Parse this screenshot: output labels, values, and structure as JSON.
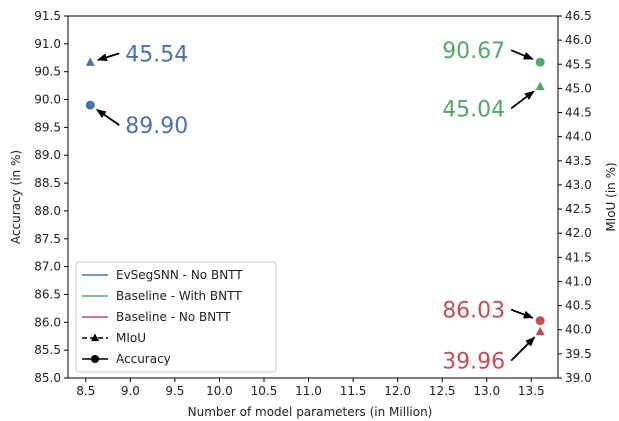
{
  "chart_data": {
    "type": "scatter",
    "title": "",
    "xlabel": "Number of model parameters (in Million)",
    "ylabel": "Accuracy (in %)",
    "y2label": "MIoU (in %)",
    "xlim": [
      8.3,
      13.8
    ],
    "ylim": [
      85.0,
      91.5
    ],
    "y2lim": [
      39.0,
      46.5
    ],
    "grid": false,
    "legend_placement": "bottom-left",
    "xticks": [
      "8.5",
      "9.0",
      "9.5",
      "10.0",
      "10.5",
      "11.0",
      "11.5",
      "12.0",
      "12.5",
      "13.0",
      "13.5"
    ],
    "yticks": [
      "85.0",
      "85.5",
      "86.0",
      "86.5",
      "87.0",
      "87.5",
      "88.0",
      "88.5",
      "89.0",
      "89.5",
      "90.0",
      "90.5",
      "91.0",
      "91.5"
    ],
    "y2ticks": [
      "39.0",
      "39.5",
      "40.0",
      "40.5",
      "41.0",
      "41.5",
      "42.0",
      "42.5",
      "43.0",
      "43.5",
      "44.0",
      "44.5",
      "45.0",
      "45.5",
      "46.0",
      "46.5"
    ],
    "series": [
      {
        "name": "EvSegSNN - No BNTT",
        "color": "#4c72b0",
        "points": [
          {
            "metric": "MIoU",
            "axis": "right",
            "marker": "triangle",
            "x": 8.55,
            "y": 45.54
          },
          {
            "metric": "Accuracy",
            "axis": "left",
            "marker": "circle",
            "x": 8.55,
            "y": 89.9
          }
        ]
      },
      {
        "name": "Baseline - With BNTT",
        "color": "#55a868",
        "points": [
          {
            "metric": "MIoU",
            "axis": "right",
            "marker": "triangle",
            "x": 13.6,
            "y": 45.04
          },
          {
            "metric": "Accuracy",
            "axis": "left",
            "marker": "circle",
            "x": 13.6,
            "y": 90.67
          }
        ]
      },
      {
        "name": "Baseline - No BNTT",
        "color": "#c44e52",
        "points": [
          {
            "metric": "MIoU",
            "axis": "right",
            "marker": "triangle",
            "x": 13.6,
            "y": 39.96
          },
          {
            "metric": "Accuracy",
            "axis": "left",
            "marker": "circle",
            "x": 13.6,
            "y": 86.03
          }
        ]
      }
    ],
    "legend_entries": [
      {
        "label": "EvSegSNN - No BNTT",
        "color": "#4c72b0",
        "style": "line"
      },
      {
        "label": "Baseline - With BNTT",
        "color": "#55a868",
        "style": "line"
      },
      {
        "label": "Baseline - No BNTT",
        "color": "#c44e52",
        "style": "line"
      },
      {
        "label": "MIoU",
        "color": "#000000",
        "style": "dashed-triangle"
      },
      {
        "label": "Accuracy",
        "color": "#000000",
        "style": "solid-circle"
      }
    ],
    "annotations": [
      {
        "text": "45.54",
        "color": "#4c72b0",
        "series": 0,
        "point": 0
      },
      {
        "text": "89.90",
        "color": "#4c72b0",
        "series": 0,
        "point": 1
      },
      {
        "text": "90.67",
        "color": "#55a868",
        "series": 1,
        "point": 1
      },
      {
        "text": "45.04",
        "color": "#55a868",
        "series": 1,
        "point": 0
      },
      {
        "text": "86.03",
        "color": "#c44e52",
        "series": 2,
        "point": 1
      },
      {
        "text": "39.96",
        "color": "#c44e52",
        "series": 2,
        "point": 0
      }
    ]
  }
}
